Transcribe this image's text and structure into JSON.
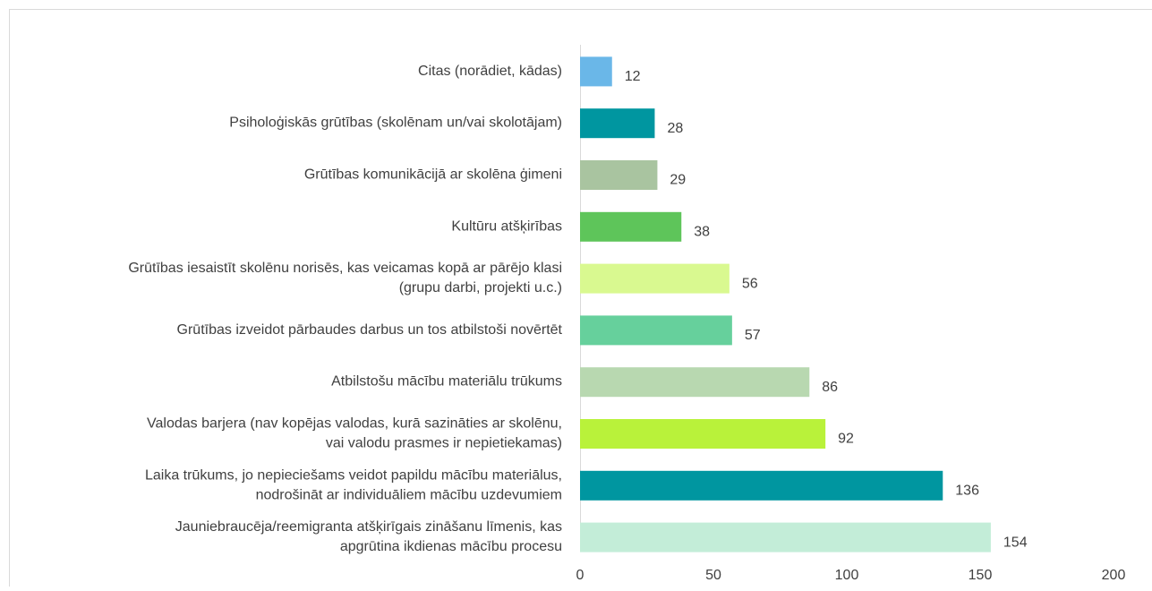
{
  "chart_data": {
    "type": "barh",
    "categories": [
      "Citas (norādiet, kādas)",
      "Psiholoģiskās grūtības (skolēnam un/vai skolotājam)",
      "Grūtības komunikācijā ar skolēna ģimeni",
      "Kultūru atšķirības",
      "Grūtības iesaistīt skolēnu norisēs, kas veicamas kopā ar pārējo klasi\n(grupu darbi, projekti u.c.)",
      "Grūtības izveidot pārbaudes darbus un  tos atbilstoši novērtēt",
      "Atbilstošu mācību materiālu trūkums",
      "Valodas barjera (nav kopējas valodas, kurā sazināties ar skolēnu,\nvai valodu prasmes ir nepietiekamas)",
      "Laika trūkums, jo nepieciešams veidot papildu mācību materiālus,\nnodrošināt ar individuāliem mācību uzdevumiem",
      "Jauniebraucēja/reemigranta atšķirīgais zināšanu līmenis, kas\napgrūtina ikdienas mācību procesu"
    ],
    "values": [
      12,
      28,
      29,
      38,
      56,
      57,
      86,
      92,
      136,
      154
    ],
    "colors": [
      "#6ab7e8",
      "#0096a0",
      "#a9c4a0",
      "#5ec55a",
      "#d9f990",
      "#66d09c",
      "#b8d8b0",
      "#b9f23a",
      "#0096a0",
      "#c3edd8"
    ],
    "xlim": [
      0,
      200
    ],
    "xticks": [
      0,
      50,
      100,
      150,
      200
    ],
    "grid": false
  }
}
